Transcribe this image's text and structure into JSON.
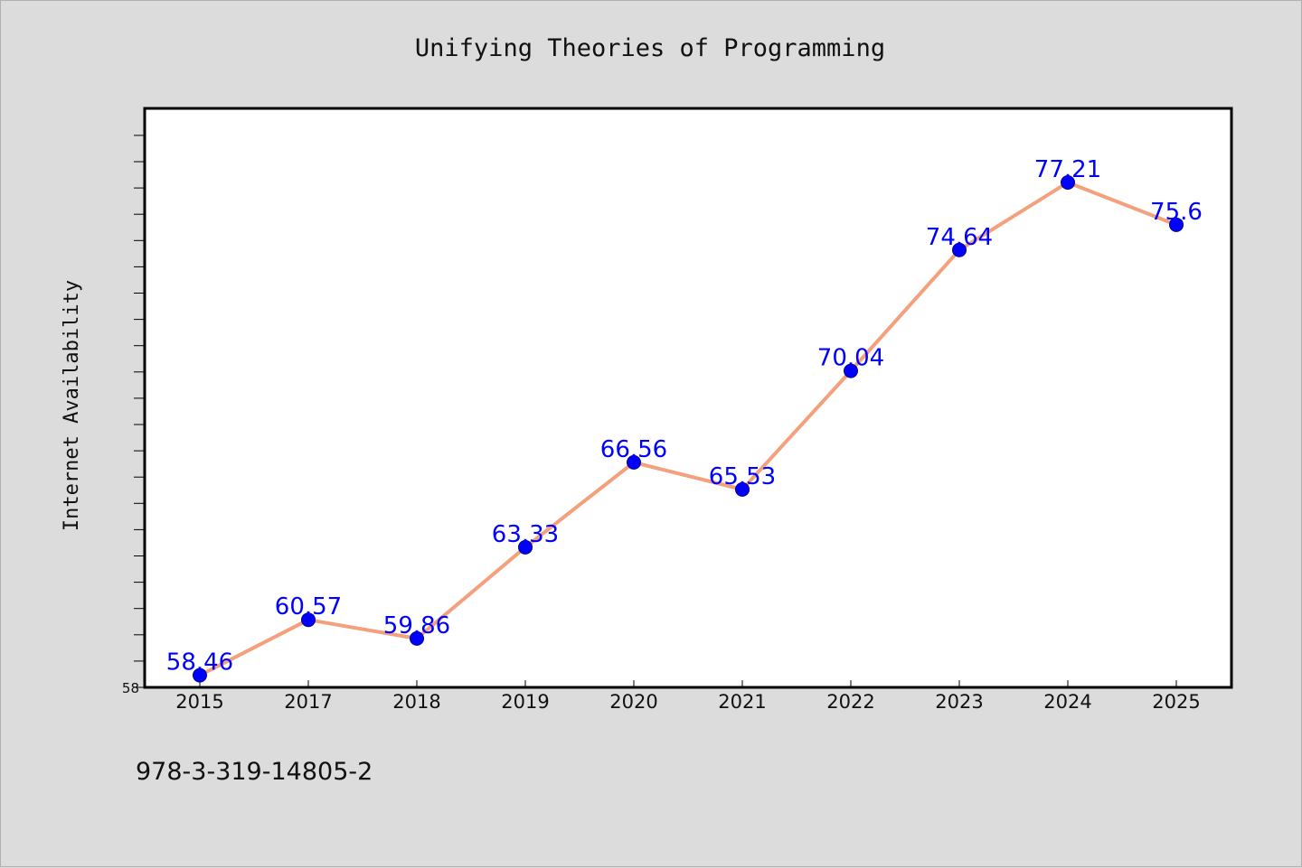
{
  "chart_data": {
    "type": "line",
    "title": "Unifying Theories of Programming",
    "xlabel": "",
    "ylabel": "Internet Availability",
    "categories": [
      "2015",
      "2017",
      "2018",
      "2019",
      "2020",
      "2021",
      "2022",
      "2023",
      "2024",
      "2025"
    ],
    "series": [
      {
        "values": [
          58.46,
          60.57,
          59.86,
          63.33,
          66.56,
          65.53,
          70.04,
          74.64,
          77.21,
          75.6
        ],
        "data_labels": [
          "58.46",
          "60.57",
          "59.86",
          "63.33",
          "66.56",
          "65.53",
          "70.04",
          "74.64",
          "77.21",
          "75.6"
        ],
        "line_color": "#f4a07c",
        "marker_color": "#0000ff"
      }
    ],
    "ylim": [
      58,
      80
    ],
    "yticks_labeled": [
      "58"
    ],
    "grid": false,
    "legend": "none"
  },
  "footnote": "978-3-319-14805-2"
}
